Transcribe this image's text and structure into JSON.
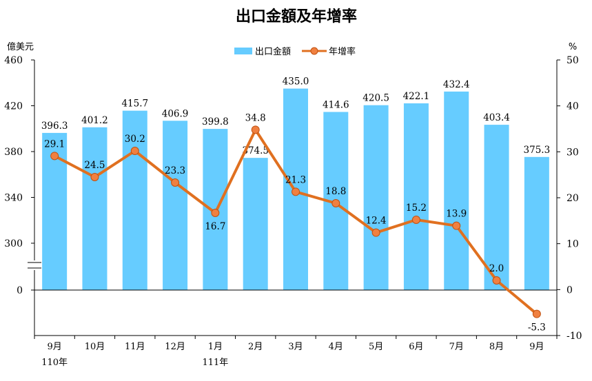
{
  "chart_data": {
    "type": "bar",
    "title": "出口金額及年增率",
    "y_left_unit": "億美元",
    "y_right_unit": "%",
    "categories": [
      "9月",
      "10月",
      "11月",
      "12月",
      "1月",
      "2月",
      "3月",
      "4月",
      "5月",
      "6月",
      "7月",
      "8月",
      "9月"
    ],
    "year_labels": [
      "110年",
      "",
      "",
      "",
      "111年",
      "",
      "",
      "",
      "",
      "",
      "",
      "",
      ""
    ],
    "series": [
      {
        "name": "出口金額",
        "type": "bar",
        "axis": "left",
        "color": "#66ccff",
        "values": [
          396.3,
          401.2,
          415.7,
          406.9,
          399.8,
          374.5,
          435.0,
          414.6,
          420.5,
          422.1,
          432.4,
          403.4,
          375.3
        ],
        "labels": [
          "396.3",
          "401.2",
          "415.7",
          "406.9",
          "399.8",
          "374.5",
          "435.0",
          "414.6",
          "420.5",
          "422.1",
          "432.4",
          "403.4",
          "375.3"
        ]
      },
      {
        "name": "年增率",
        "type": "line",
        "axis": "right",
        "color": "#e07020",
        "marker_color": "#f08040",
        "values": [
          29.1,
          24.5,
          30.2,
          23.3,
          16.7,
          34.8,
          21.3,
          18.8,
          12.4,
          15.2,
          13.9,
          2.0,
          -5.3
        ],
        "labels": [
          "29.1",
          "24.5",
          "30.2",
          "23.3",
          "16.7",
          "34.8",
          "21.3",
          "18.8",
          "12.4",
          "15.2",
          "13.9",
          "2.0",
          "-5.3"
        ]
      }
    ],
    "y_left_ticks": [
      "460",
      "420",
      "380",
      "340",
      "300",
      "0"
    ],
    "y_left_axis": {
      "broken": true,
      "break_below": 300,
      "break_above": 0
    },
    "y_right_ticks": [
      "50",
      "40",
      "30",
      "20",
      "10",
      "0",
      "-10"
    ],
    "y_right_range": [
      -10,
      50
    ],
    "legend_position": "top-center",
    "grid": false
  }
}
